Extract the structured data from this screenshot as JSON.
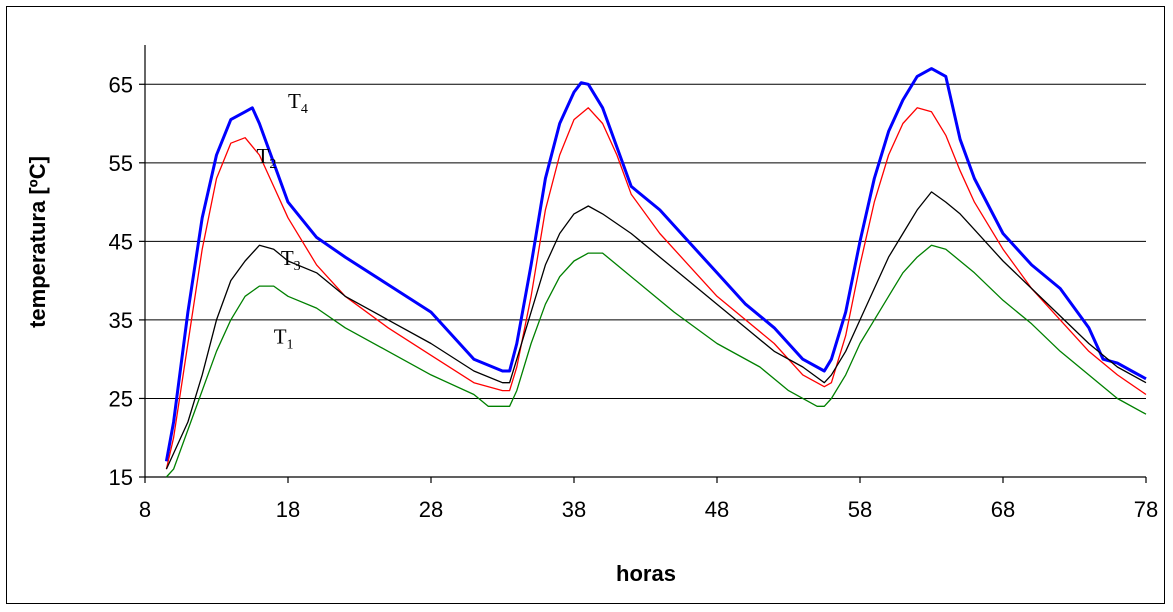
{
  "chart_data": {
    "type": "line",
    "xlabel": "horas",
    "ylabel": "temperatura [ºC]",
    "xlim": [
      8,
      78
    ],
    "ylim": [
      15,
      70
    ],
    "x_ticks": [
      8,
      18,
      28,
      38,
      48,
      58,
      68,
      78
    ],
    "y_ticks": [
      15,
      25,
      35,
      45,
      55,
      65
    ],
    "grid": "horizontal",
    "series": [
      {
        "name": "T4",
        "label_main": "T",
        "label_sub": "4",
        "color": "#0000ff",
        "points": [
          [
            9.5,
            17
          ],
          [
            10,
            22
          ],
          [
            11,
            36
          ],
          [
            12,
            48
          ],
          [
            13,
            56
          ],
          [
            14,
            60.5
          ],
          [
            15,
            61.5
          ],
          [
            15.5,
            62
          ],
          [
            16,
            60
          ],
          [
            17,
            55
          ],
          [
            18,
            50
          ],
          [
            20,
            45.5
          ],
          [
            22,
            43
          ],
          [
            25,
            39.5
          ],
          [
            28,
            36
          ],
          [
            31,
            30
          ],
          [
            33,
            28.5
          ],
          [
            33.5,
            28.5
          ],
          [
            34,
            32
          ],
          [
            35,
            42
          ],
          [
            36,
            53
          ],
          [
            37,
            60
          ],
          [
            38,
            64
          ],
          [
            38.5,
            65.2
          ],
          [
            39,
            65
          ],
          [
            40,
            62
          ],
          [
            41,
            57
          ],
          [
            42,
            52
          ],
          [
            44,
            49
          ],
          [
            46,
            45
          ],
          [
            48,
            41
          ],
          [
            50,
            37
          ],
          [
            52,
            34
          ],
          [
            54,
            30
          ],
          [
            55.5,
            28.5
          ],
          [
            56,
            30
          ],
          [
            57,
            36
          ],
          [
            58,
            45
          ],
          [
            59,
            53
          ],
          [
            60,
            59
          ],
          [
            61,
            63
          ],
          [
            62,
            66
          ],
          [
            63,
            67
          ],
          [
            64,
            66
          ],
          [
            65,
            58
          ],
          [
            66,
            53
          ],
          [
            68,
            46
          ],
          [
            70,
            42
          ],
          [
            72,
            39
          ],
          [
            74,
            34
          ],
          [
            75,
            30
          ],
          [
            76,
            29.5
          ],
          [
            77,
            28.5
          ],
          [
            78,
            27.5
          ]
        ]
      },
      {
        "name": "T2",
        "label_main": "T",
        "label_sub": "2",
        "color": "#ff0000",
        "points": [
          [
            9.5,
            16
          ],
          [
            10,
            20
          ],
          [
            11,
            32
          ],
          [
            12,
            44
          ],
          [
            13,
            53
          ],
          [
            14,
            57.5
          ],
          [
            15,
            58.2
          ],
          [
            16,
            56
          ],
          [
            17,
            52
          ],
          [
            18,
            48
          ],
          [
            20,
            42
          ],
          [
            22,
            38
          ],
          [
            25,
            34
          ],
          [
            28,
            30.5
          ],
          [
            31,
            27
          ],
          [
            33,
            26
          ],
          [
            33.5,
            26
          ],
          [
            34,
            29
          ],
          [
            35,
            38
          ],
          [
            36,
            49
          ],
          [
            37,
            56
          ],
          [
            38,
            60.5
          ],
          [
            39,
            62
          ],
          [
            40,
            60
          ],
          [
            41,
            56
          ],
          [
            42,
            51
          ],
          [
            44,
            46
          ],
          [
            46,
            42
          ],
          [
            48,
            38
          ],
          [
            50,
            35
          ],
          [
            52,
            32
          ],
          [
            54,
            28
          ],
          [
            55.5,
            26.5
          ],
          [
            56,
            27
          ],
          [
            57,
            33
          ],
          [
            58,
            42
          ],
          [
            59,
            50
          ],
          [
            60,
            56
          ],
          [
            61,
            60
          ],
          [
            62,
            62
          ],
          [
            63,
            61.5
          ],
          [
            64,
            58.5
          ],
          [
            65,
            54
          ],
          [
            66,
            50
          ],
          [
            68,
            44
          ],
          [
            70,
            39
          ],
          [
            72,
            35
          ],
          [
            74,
            31
          ],
          [
            76,
            28
          ],
          [
            78,
            25.5
          ]
        ]
      },
      {
        "name": "T3",
        "label_main": "T",
        "label_sub": "3",
        "color": "#000000",
        "points": [
          [
            9.5,
            16
          ],
          [
            10,
            18
          ],
          [
            11,
            22
          ],
          [
            12,
            28
          ],
          [
            13,
            35
          ],
          [
            14,
            40
          ],
          [
            15,
            42.5
          ],
          [
            16,
            44.5
          ],
          [
            17,
            44
          ],
          [
            18,
            42.5
          ],
          [
            20,
            41
          ],
          [
            22,
            38
          ],
          [
            25,
            35
          ],
          [
            28,
            32
          ],
          [
            31,
            28.5
          ],
          [
            33,
            27
          ],
          [
            33.5,
            27
          ],
          [
            34,
            30
          ],
          [
            35,
            36
          ],
          [
            36,
            42
          ],
          [
            37,
            46
          ],
          [
            38,
            48.5
          ],
          [
            39,
            49.5
          ],
          [
            40,
            48.5
          ],
          [
            42,
            46
          ],
          [
            44,
            43
          ],
          [
            46,
            40
          ],
          [
            48,
            37
          ],
          [
            50,
            34
          ],
          [
            52,
            31
          ],
          [
            54,
            29
          ],
          [
            55.5,
            27
          ],
          [
            56,
            28
          ],
          [
            57,
            31
          ],
          [
            58,
            35
          ],
          [
            59,
            39
          ],
          [
            60,
            43
          ],
          [
            61,
            46
          ],
          [
            62,
            49
          ],
          [
            63,
            51.3
          ],
          [
            64,
            50
          ],
          [
            65,
            48.5
          ],
          [
            66,
            46.5
          ],
          [
            68,
            42.5
          ],
          [
            70,
            39
          ],
          [
            72,
            35.5
          ],
          [
            74,
            32
          ],
          [
            76,
            29
          ],
          [
            78,
            27
          ]
        ]
      },
      {
        "name": "T1",
        "label_main": "T",
        "label_sub": "1",
        "color": "#008000",
        "points": [
          [
            9.5,
            15
          ],
          [
            10,
            16
          ],
          [
            11,
            21
          ],
          [
            12,
            26
          ],
          [
            13,
            31
          ],
          [
            14,
            35
          ],
          [
            15,
            38
          ],
          [
            16,
            39.3
          ],
          [
            17,
            39.3
          ],
          [
            18,
            38
          ],
          [
            20,
            36.5
          ],
          [
            22,
            34
          ],
          [
            25,
            31
          ],
          [
            28,
            28
          ],
          [
            31,
            25.5
          ],
          [
            32,
            24
          ],
          [
            33.5,
            24
          ],
          [
            34,
            26
          ],
          [
            35,
            32
          ],
          [
            36,
            37
          ],
          [
            37,
            40.5
          ],
          [
            38,
            42.5
          ],
          [
            39,
            43.5
          ],
          [
            40,
            43.5
          ],
          [
            41,
            42
          ],
          [
            43,
            39
          ],
          [
            45,
            36
          ],
          [
            48,
            32
          ],
          [
            51,
            29
          ],
          [
            53,
            26
          ],
          [
            55,
            24
          ],
          [
            55.5,
            24
          ],
          [
            56,
            25
          ],
          [
            57,
            28
          ],
          [
            58,
            32
          ],
          [
            59,
            35
          ],
          [
            60,
            38
          ],
          [
            61,
            41
          ],
          [
            62,
            43
          ],
          [
            63,
            44.5
          ],
          [
            64,
            44
          ],
          [
            66,
            41
          ],
          [
            68,
            37.5
          ],
          [
            70,
            34.5
          ],
          [
            72,
            31
          ],
          [
            74,
            28
          ],
          [
            76,
            25
          ],
          [
            78,
            23
          ]
        ]
      }
    ],
    "series_labels": [
      {
        "series": "T4",
        "x": 18,
        "y": 62
      },
      {
        "series": "T2",
        "x": 15.8,
        "y": 55
      },
      {
        "series": "T3",
        "x": 17.5,
        "y": 42
      },
      {
        "series": "T1",
        "x": 17,
        "y": 32
      }
    ]
  }
}
